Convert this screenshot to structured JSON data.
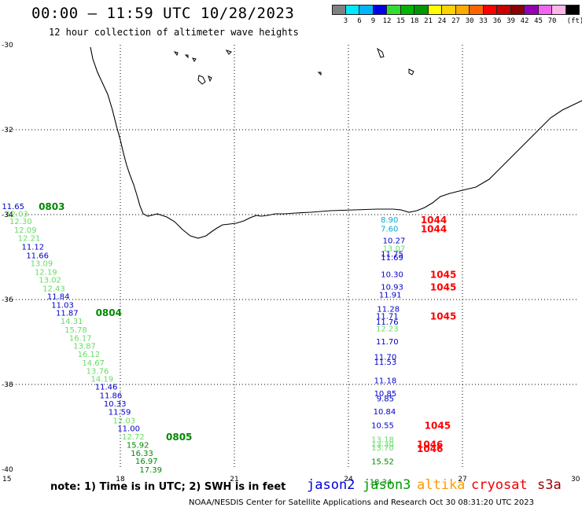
{
  "header": {
    "title": "00:00 – 11:59 UTC 10/28/2023",
    "subtitle": "12 hour collection of altimeter wave heights"
  },
  "colorbar": {
    "colors": [
      "#808080",
      "#00e8ff",
      "#00b4ff",
      "#0000e6",
      "#32dc32",
      "#00b400",
      "#009600",
      "#ffff00",
      "#ffd200",
      "#ffaa00",
      "#ff6400",
      "#ff0000",
      "#c80000",
      "#8c0000",
      "#9600b4",
      "#f064f0",
      "#ffb4e6",
      "#000000"
    ],
    "ticks": [
      "3",
      "6",
      "9",
      "12",
      "15",
      "18",
      "21",
      "24",
      "27",
      "30",
      "33",
      "36",
      "39",
      "42",
      "45",
      "70"
    ],
    "unit": "(ft)"
  },
  "axes": {
    "lon_ticks": [
      "15",
      "18",
      "21",
      "24",
      "27",
      "30"
    ],
    "lat_ticks": [
      "-30",
      "-32",
      "-34",
      "-36",
      "-38",
      "-40"
    ]
  },
  "tracks": {
    "west": [
      {
        "v": "11.65",
        "c": "#0000cc",
        "lat": -33.8,
        "lon": 15.18
      },
      {
        "v": "12.03",
        "c": "#66dd66",
        "lat": -33.97,
        "lon": 15.28
      },
      {
        "v": "12.30",
        "c": "#66dd66",
        "lat": -34.15,
        "lon": 15.38
      },
      {
        "v": "12.09",
        "c": "#66dd66",
        "lat": -34.35,
        "lon": 15.5
      },
      {
        "v": "12.21",
        "c": "#66dd66",
        "lat": -34.55,
        "lon": 15.6
      },
      {
        "v": "11.12",
        "c": "#0000cc",
        "lat": -34.75,
        "lon": 15.7
      },
      {
        "v": "11.66",
        "c": "#0000cc",
        "lat": -34.95,
        "lon": 15.82
      },
      {
        "v": "13.09",
        "c": "#66dd66",
        "lat": -35.14,
        "lon": 15.93
      },
      {
        "v": "12.19",
        "c": "#66dd66",
        "lat": -35.34,
        "lon": 16.04
      },
      {
        "v": "13.02",
        "c": "#66dd66",
        "lat": -35.53,
        "lon": 16.15
      },
      {
        "v": "12.43",
        "c": "#66dd66",
        "lat": -35.73,
        "lon": 16.25
      },
      {
        "v": "11.84",
        "c": "#0000cc",
        "lat": -35.92,
        "lon": 16.37
      },
      {
        "v": "11.03",
        "c": "#0000cc",
        "lat": -36.12,
        "lon": 16.48
      },
      {
        "v": "11.87",
        "c": "#0000cc",
        "lat": -36.31,
        "lon": 16.6
      },
      {
        "v": "14.31",
        "c": "#66dd66",
        "lat": -36.5,
        "lon": 16.72
      },
      {
        "v": "15.78",
        "c": "#66dd66",
        "lat": -36.7,
        "lon": 16.83
      },
      {
        "v": "16.17",
        "c": "#66dd66",
        "lat": -36.9,
        "lon": 16.95
      },
      {
        "v": "13.87",
        "c": "#66dd66",
        "lat": -37.08,
        "lon": 17.06
      },
      {
        "v": "16.12",
        "c": "#66dd66",
        "lat": -37.28,
        "lon": 17.17
      },
      {
        "v": "14.67",
        "c": "#66dd66",
        "lat": -37.48,
        "lon": 17.29
      },
      {
        "v": "13.76",
        "c": "#66dd66",
        "lat": -37.68,
        "lon": 17.4
      },
      {
        "v": "14.19",
        "c": "#66dd66",
        "lat": -37.86,
        "lon": 17.52
      },
      {
        "v": "11.46",
        "c": "#0000cc",
        "lat": -38.05,
        "lon": 17.63
      },
      {
        "v": "11.86",
        "c": "#0000cc",
        "lat": -38.25,
        "lon": 17.75
      },
      {
        "v": "10.33",
        "c": "#0000cc",
        "lat": -38.44,
        "lon": 17.86
      },
      {
        "v": "11.59",
        "c": "#0000cc",
        "lat": -38.64,
        "lon": 17.98
      },
      {
        "v": "12.03",
        "c": "#66dd66",
        "lat": -38.84,
        "lon": 18.1
      },
      {
        "v": "11.00",
        "c": "#0000cc",
        "lat": -39.03,
        "lon": 18.22
      },
      {
        "v": "12.72",
        "c": "#66dd66",
        "lat": -39.22,
        "lon": 18.34
      },
      {
        "v": "15.92",
        "c": "#008800",
        "lat": -39.42,
        "lon": 18.46
      },
      {
        "v": "16.33",
        "c": "#008800",
        "lat": -39.61,
        "lon": 18.57
      },
      {
        "v": "16.97",
        "c": "#008800",
        "lat": -39.8,
        "lon": 18.69
      },
      {
        "v": "17.39",
        "c": "#008800",
        "lat": -40.0,
        "lon": 18.8
      }
    ],
    "east": [
      {
        "v": "8.90",
        "c": "#00aacc",
        "lat": -34.11,
        "lon": 25.08
      },
      {
        "v": "7.60",
        "c": "#00aacc",
        "lat": -34.32,
        "lon": 25.08
      },
      {
        "v": "10.27",
        "c": "#0000cc",
        "lat": -34.6,
        "lon": 25.2
      },
      {
        "v": "13.07",
        "c": "#66dd66",
        "lat": -34.79,
        "lon": 25.2
      },
      {
        "v": "11.75",
        "c": "#0000cc",
        "lat": -34.92,
        "lon": 25.15
      },
      {
        "v": "11.69",
        "c": "#0000cc",
        "lat": -35.0,
        "lon": 25.15
      },
      {
        "v": "10.30",
        "c": "#0000cc",
        "lat": -35.4,
        "lon": 25.15
      },
      {
        "v": "10.93",
        "c": "#0000cc",
        "lat": -35.69,
        "lon": 25.15
      },
      {
        "v": "11.91",
        "c": "#0000cc",
        "lat": -35.88,
        "lon": 25.1
      },
      {
        "v": "11.28",
        "c": "#0000cc",
        "lat": -36.21,
        "lon": 25.05
      },
      {
        "v": "11.71",
        "c": "#0000cc",
        "lat": -36.38,
        "lon": 25.02
      },
      {
        "v": "11.76",
        "c": "#0000cc",
        "lat": -36.52,
        "lon": 25.02
      },
      {
        "v": "12.23",
        "c": "#66dd66",
        "lat": -36.68,
        "lon": 25.02
      },
      {
        "v": "11.70",
        "c": "#0000cc",
        "lat": -36.98,
        "lon": 25.02
      },
      {
        "v": "11.70",
        "c": "#0000cc",
        "lat": -37.34,
        "lon": 24.97
      },
      {
        "v": "11.53",
        "c": "#0000cc",
        "lat": -37.46,
        "lon": 24.97
      },
      {
        "v": "11.18",
        "c": "#0000cc",
        "lat": -37.9,
        "lon": 24.97
      },
      {
        "v": "10.85",
        "c": "#0000cc",
        "lat": -38.2,
        "lon": 24.97
      },
      {
        "v": "9.85",
        "c": "#0000cc",
        "lat": -38.32,
        "lon": 24.97
      },
      {
        "v": "10.84",
        "c": "#0000cc",
        "lat": -38.63,
        "lon": 24.95
      },
      {
        "v": "10.55",
        "c": "#0000cc",
        "lat": -38.95,
        "lon": 24.9
      },
      {
        "v": "13.18",
        "c": "#66dd66",
        "lat": -39.29,
        "lon": 24.9
      },
      {
        "v": "13.30",
        "c": "#66dd66",
        "lat": -39.4,
        "lon": 24.9
      },
      {
        "v": "13.70",
        "c": "#66dd66",
        "lat": -39.48,
        "lon": 24.9
      },
      {
        "v": "15.52",
        "c": "#008800",
        "lat": -39.81,
        "lon": 24.9
      },
      {
        "v": "18.34",
        "c": "#008800",
        "lat": -40.29,
        "lon": 24.85
      }
    ]
  },
  "pass_labels": [
    {
      "t": "0803",
      "c": "#008800",
      "lat": -33.8,
      "lon": 15.85
    },
    {
      "t": "0804",
      "c": "#008800",
      "lat": -36.3,
      "lon": 17.35
    },
    {
      "t": "0805",
      "c": "#008800",
      "lat": -39.22,
      "lon": 19.2
    },
    {
      "t": "1044",
      "c": "#ff0000",
      "lat": -34.11,
      "lon": 25.9
    },
    {
      "t": "1044",
      "c": "#ff0000",
      "lat": -34.32,
      "lon": 25.9
    },
    {
      "t": "1045",
      "c": "#ff0000",
      "lat": -35.4,
      "lon": 26.15
    },
    {
      "t": "1045",
      "c": "#ff0000",
      "lat": -35.69,
      "lon": 26.15
    },
    {
      "t": "1045",
      "c": "#ff0000",
      "lat": -36.38,
      "lon": 26.15
    },
    {
      "t": "1045",
      "c": "#ff0000",
      "lat": -38.95,
      "lon": 26.0
    },
    {
      "t": "1046",
      "c": "#ff0000",
      "lat": -39.4,
      "lon": 25.8
    },
    {
      "t": "1046",
      "c": "#ff0000",
      "lat": -39.5,
      "lon": 25.8
    }
  ],
  "legend": {
    "note": "note: 1) Time is in UTC; 2) SWH is in feet",
    "satellites": [
      {
        "name": "jason2",
        "color": "#0000dd"
      },
      {
        "name": "jason3",
        "color": "#009900"
      },
      {
        "name": "altika",
        "color": "#ff9900"
      },
      {
        "name": "cryosat",
        "color": "#ee0000"
      },
      {
        "name": "s3a",
        "color": "#990000"
      }
    ]
  },
  "footer": {
    "credit": "NOAA/NESDIS Center for Satellite Applications and Research   Oct 30 08:31:20 UTC 2023"
  }
}
